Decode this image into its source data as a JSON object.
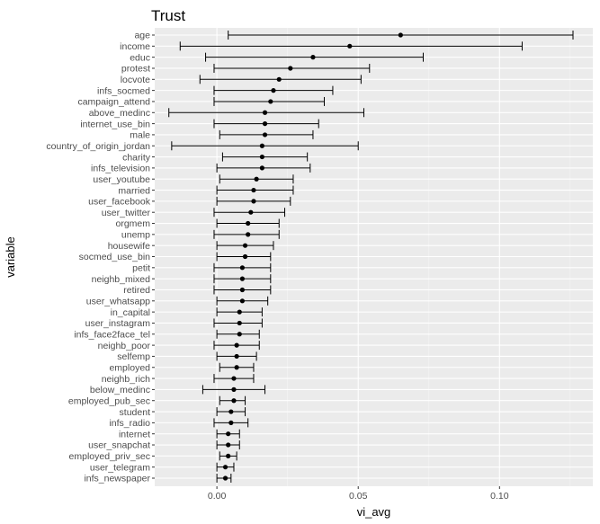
{
  "chart_data": {
    "type": "scatter",
    "title": "Trust",
    "xlabel": "vi_avg",
    "ylabel": "variable",
    "xlim": [
      -0.022,
      0.133
    ],
    "x_ticks": [
      0.0,
      0.05,
      0.1
    ],
    "x_tick_labels": [
      "0.00",
      "0.05",
      "0.10"
    ],
    "grid": true,
    "colors": {
      "panel": "#ebebeb",
      "grid_major": "#ffffff",
      "grid_minor": "#f5f5f5",
      "point": "#000000",
      "errorbar": "#000000"
    },
    "series": [
      {
        "points": [
          {
            "variable": "age",
            "x": 0.065,
            "lower": 0.004,
            "upper": 0.126
          },
          {
            "variable": "income",
            "x": 0.047,
            "lower": -0.013,
            "upper": 0.108
          },
          {
            "variable": "educ",
            "x": 0.034,
            "lower": -0.004,
            "upper": 0.073
          },
          {
            "variable": "protest",
            "x": 0.026,
            "lower": -0.001,
            "upper": 0.054
          },
          {
            "variable": "locvote",
            "x": 0.022,
            "lower": -0.006,
            "upper": 0.051
          },
          {
            "variable": "infs_socmed",
            "x": 0.02,
            "lower": -0.001,
            "upper": 0.041
          },
          {
            "variable": "campaign_attend",
            "x": 0.019,
            "lower": -0.001,
            "upper": 0.038
          },
          {
            "variable": "above_medinc",
            "x": 0.017,
            "lower": -0.017,
            "upper": 0.052
          },
          {
            "variable": "internet_use_bin",
            "x": 0.017,
            "lower": -0.001,
            "upper": 0.036
          },
          {
            "variable": "male",
            "x": 0.017,
            "lower": 0.001,
            "upper": 0.034
          },
          {
            "variable": "country_of_origin_jordan",
            "x": 0.016,
            "lower": -0.016,
            "upper": 0.05
          },
          {
            "variable": "charity",
            "x": 0.016,
            "lower": 0.002,
            "upper": 0.032
          },
          {
            "variable": "infs_television",
            "x": 0.016,
            "lower": 0.0,
            "upper": 0.033
          },
          {
            "variable": "user_youtube",
            "x": 0.014,
            "lower": 0.001,
            "upper": 0.027
          },
          {
            "variable": "married",
            "x": 0.013,
            "lower": 0.0,
            "upper": 0.027
          },
          {
            "variable": "user_facebook",
            "x": 0.013,
            "lower": 0.0,
            "upper": 0.026
          },
          {
            "variable": "user_twitter",
            "x": 0.012,
            "lower": -0.001,
            "upper": 0.024
          },
          {
            "variable": "orgmem",
            "x": 0.011,
            "lower": 0.0,
            "upper": 0.022
          },
          {
            "variable": "unemp",
            "x": 0.011,
            "lower": -0.001,
            "upper": 0.022
          },
          {
            "variable": "housewife",
            "x": 0.01,
            "lower": 0.0,
            "upper": 0.02
          },
          {
            "variable": "socmed_use_bin",
            "x": 0.01,
            "lower": 0.0,
            "upper": 0.019
          },
          {
            "variable": "petit",
            "x": 0.009,
            "lower": -0.001,
            "upper": 0.019
          },
          {
            "variable": "neighb_mixed",
            "x": 0.009,
            "lower": -0.001,
            "upper": 0.019
          },
          {
            "variable": "retired",
            "x": 0.009,
            "lower": -0.001,
            "upper": 0.019
          },
          {
            "variable": "user_whatsapp",
            "x": 0.009,
            "lower": 0.0,
            "upper": 0.018
          },
          {
            "variable": "in_capital",
            "x": 0.008,
            "lower": 0.0,
            "upper": 0.016
          },
          {
            "variable": "user_instagram",
            "x": 0.008,
            "lower": -0.001,
            "upper": 0.016
          },
          {
            "variable": "infs_face2face_tel",
            "x": 0.008,
            "lower": 0.0,
            "upper": 0.015
          },
          {
            "variable": "neighb_poor",
            "x": 0.007,
            "lower": -0.001,
            "upper": 0.015
          },
          {
            "variable": "selfemp",
            "x": 0.007,
            "lower": 0.0,
            "upper": 0.014
          },
          {
            "variable": "employed",
            "x": 0.007,
            "lower": 0.001,
            "upper": 0.013
          },
          {
            "variable": "neighb_rich",
            "x": 0.006,
            "lower": -0.001,
            "upper": 0.013
          },
          {
            "variable": "below_medinc",
            "x": 0.006,
            "lower": -0.005,
            "upper": 0.017
          },
          {
            "variable": "employed_pub_sec",
            "x": 0.006,
            "lower": 0.001,
            "upper": 0.01
          },
          {
            "variable": "student",
            "x": 0.005,
            "lower": 0.0,
            "upper": 0.01
          },
          {
            "variable": "infs_radio",
            "x": 0.005,
            "lower": -0.001,
            "upper": 0.011
          },
          {
            "variable": "internet",
            "x": 0.004,
            "lower": 0.0,
            "upper": 0.008
          },
          {
            "variable": "user_snapchat",
            "x": 0.004,
            "lower": 0.0,
            "upper": 0.008
          },
          {
            "variable": "employed_priv_sec",
            "x": 0.004,
            "lower": 0.001,
            "upper": 0.007
          },
          {
            "variable": "user_telegram",
            "x": 0.003,
            "lower": 0.0,
            "upper": 0.006
          },
          {
            "variable": "infs_newspaper",
            "x": 0.003,
            "lower": 0.0,
            "upper": 0.005
          }
        ]
      }
    ]
  }
}
